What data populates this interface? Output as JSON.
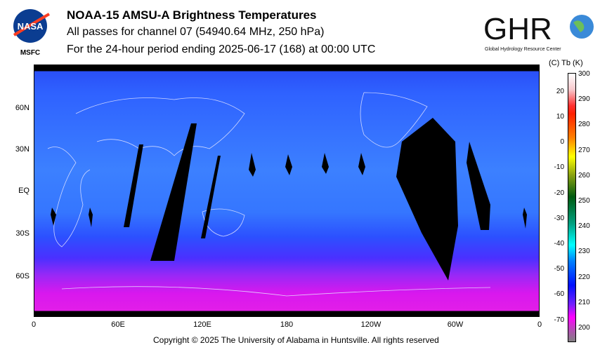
{
  "header": {
    "title": "NOAA-15 AMSU-A Brightness Temperatures",
    "subtitle": "All passes for channel 07 (54940.64 MHz, 250 hPa)",
    "period": "For the 24-hour period ending 2025-06-17 (168) at 00:00 UTC",
    "left_logo": {
      "name": "NASA",
      "label": "MSFC"
    },
    "right_logo": {
      "name": "GHRC",
      "label": "Global Hydrology Resource Center"
    }
  },
  "map": {
    "lat_labels": [
      "60N",
      "30N",
      "EQ",
      "30S",
      "60S"
    ],
    "lon_labels": [
      "0",
      "60E",
      "120E",
      "180",
      "120W",
      "60W",
      "0"
    ]
  },
  "colorbar": {
    "header": "(C)  Tb  (K)",
    "kelvin_ticks": [
      "300",
      "290",
      "280",
      "270",
      "260",
      "250",
      "240",
      "230",
      "220",
      "210",
      "200"
    ],
    "celsius_ticks": [
      "20",
      "10",
      "0",
      "-10",
      "-20",
      "-30",
      "-40",
      "-50",
      "-60",
      "-70"
    ]
  },
  "footer": {
    "copyright": "Copyright © 2025 The University of Alabama in Huntsville.  All rights reserved"
  }
}
